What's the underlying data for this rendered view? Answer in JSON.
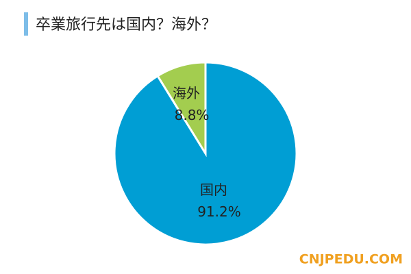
{
  "chart_data": {
    "type": "pie",
    "title": "卒業旅行先は国内？海外？",
    "categories": [
      "国内",
      "海外"
    ],
    "values": [
      91.2,
      8.8
    ],
    "value_labels": [
      "91.2%",
      "8.8%"
    ],
    "colors": [
      "#009ed4",
      "#a3cd4f"
    ],
    "watermark": "CNJPEDU.COM"
  }
}
